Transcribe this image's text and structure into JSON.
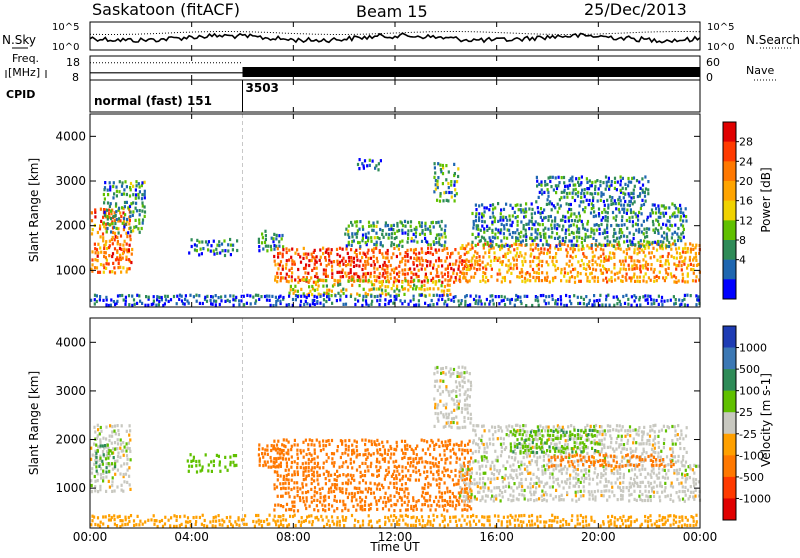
{
  "header": {
    "title": "Saskatoon (fitACF)",
    "beam": "Beam 15",
    "date": "25/Dec/2013"
  },
  "side_labels": {
    "nsky": "N.Sky",
    "nsearch": "N.Search",
    "freq_line1": "Freq.",
    "freq_line2": "[MHz]",
    "nave": "Nave",
    "cpid": "CPID"
  },
  "cpid_entries": [
    {
      "hour": 0,
      "label": "normal (fast) 151"
    },
    {
      "hour": 6,
      "label": "3503"
    }
  ],
  "time_axis": {
    "label": "Time UT",
    "range_hours": [
      0,
      24
    ],
    "ticks": [
      {
        "hour": 0,
        "label": "00:00"
      },
      {
        "hour": 4,
        "label": "04:00"
      },
      {
        "hour": 8,
        "label": "08:00"
      },
      {
        "hour": 12,
        "label": "12:00"
      },
      {
        "hour": 16,
        "label": "16:00"
      },
      {
        "hour": 20,
        "label": "20:00"
      },
      {
        "hour": 24,
        "label": "00:00"
      }
    ]
  },
  "noise_panel": {
    "left_ticks": [
      "10^5",
      "10^0"
    ],
    "right_ticks": [
      "10^5",
      "10^0"
    ]
  },
  "freq_panel": {
    "left_ticks": [
      "18",
      "8"
    ],
    "right_ticks": [
      "60",
      "0"
    ],
    "freq_mhz": 11,
    "nave_before": 43,
    "nave_after": 20
  },
  "chart_data": [
    {
      "type": "heatmap",
      "panel": "power",
      "ylabel": "Slant Range [km]",
      "ylim": [
        180,
        4500
      ],
      "yticks": [
        1000,
        2000,
        3000,
        4000
      ],
      "xlim": [
        0,
        24
      ],
      "colorbar": {
        "label": "Power [dB]",
        "ticks": [
          "28",
          "24",
          "20",
          "16",
          "12",
          "8",
          "4"
        ],
        "colors": [
          "#e00000",
          "#ff3a00",
          "#ff7800",
          "#ffa400",
          "#f0d200",
          "#60c000",
          "#2e8b57",
          "#1e66b0",
          "#0000ff"
        ]
      },
      "regions": [
        {
          "t": [
            0.0,
            1.6
          ],
          "r": [
            900,
            2400
          ],
          "level": 22
        },
        {
          "t": [
            0.5,
            2.2
          ],
          "r": [
            1800,
            3000
          ],
          "level": 10
        },
        {
          "t": [
            1.0,
            1.7
          ],
          "r": [
            1100,
            1500
          ],
          "level": 24
        },
        {
          "t": [
            3.8,
            5.8
          ],
          "r": [
            1300,
            1700
          ],
          "level": 8
        },
        {
          "t": [
            6.6,
            7.6
          ],
          "r": [
            1400,
            1900
          ],
          "level": 9
        },
        {
          "t": [
            7.2,
            15.0
          ],
          "r": [
            700,
            1500
          ],
          "level": 24
        },
        {
          "t": [
            7.8,
            14.2
          ],
          "r": [
            400,
            800
          ],
          "level": 16
        },
        {
          "t": [
            10.0,
            14.0
          ],
          "r": [
            1500,
            2100
          ],
          "level": 10
        },
        {
          "t": [
            10.5,
            11.5
          ],
          "r": [
            3200,
            3500
          ],
          "level": 7
        },
        {
          "t": [
            13.5,
            14.5
          ],
          "r": [
            2500,
            3400
          ],
          "level": 10
        },
        {
          "t": [
            14.5,
            24.0
          ],
          "r": [
            700,
            1600
          ],
          "level": 20
        },
        {
          "t": [
            15.0,
            23.5
          ],
          "r": [
            1500,
            2500
          ],
          "level": 9
        },
        {
          "t": [
            17.5,
            22.0
          ],
          "r": [
            2500,
            3100
          ],
          "level": 8
        },
        {
          "t": [
            0.0,
            24.0
          ],
          "r": [
            180,
            450
          ],
          "level": 6
        }
      ]
    },
    {
      "type": "heatmap",
      "panel": "velocity",
      "ylabel": "Slant Range [km]",
      "ylim": [
        180,
        4500
      ],
      "yticks": [
        1000,
        2000,
        3000,
        4000
      ],
      "xlim": [
        0,
        24
      ],
      "colorbar": {
        "label": "Velocity [m s-1]",
        "ticks": [
          "1000",
          "500",
          "100",
          "25",
          "-25",
          "-100",
          "-500",
          "-1000"
        ],
        "colors": [
          "#1e3cb4",
          "#3c78b4",
          "#2e8b57",
          "#60c000",
          "#c8c8c0",
          "#ffa000",
          "#ff7800",
          "#ff3a00",
          "#e00000"
        ]
      },
      "regions": [
        {
          "t": [
            0.0,
            1.6
          ],
          "r": [
            900,
            2300
          ],
          "level": 0
        },
        {
          "t": [
            0.2,
            1.0
          ],
          "r": [
            1300,
            1900
          ],
          "level": 100
        },
        {
          "t": [
            3.8,
            5.8
          ],
          "r": [
            1300,
            1700
          ],
          "level": 60
        },
        {
          "t": [
            6.6,
            7.6
          ],
          "r": [
            1400,
            1900
          ],
          "level": -300
        },
        {
          "t": [
            7.2,
            15.0
          ],
          "r": [
            500,
            2000
          ],
          "level": -400
        },
        {
          "t": [
            13.5,
            15.0
          ],
          "r": [
            2200,
            3500
          ],
          "level": 0
        },
        {
          "t": [
            14.5,
            24.0
          ],
          "r": [
            700,
            1500
          ],
          "level": 0
        },
        {
          "t": [
            15.0,
            23.5
          ],
          "r": [
            1500,
            2300
          ],
          "level": 0
        },
        {
          "t": [
            16.5,
            20.0
          ],
          "r": [
            1700,
            2200
          ],
          "level": 80
        },
        {
          "t": [
            18.0,
            23.0
          ],
          "r": [
            1400,
            1700
          ],
          "level": -150
        },
        {
          "t": [
            0.0,
            24.0
          ],
          "r": [
            180,
            450
          ],
          "level": -60
        }
      ]
    }
  ]
}
